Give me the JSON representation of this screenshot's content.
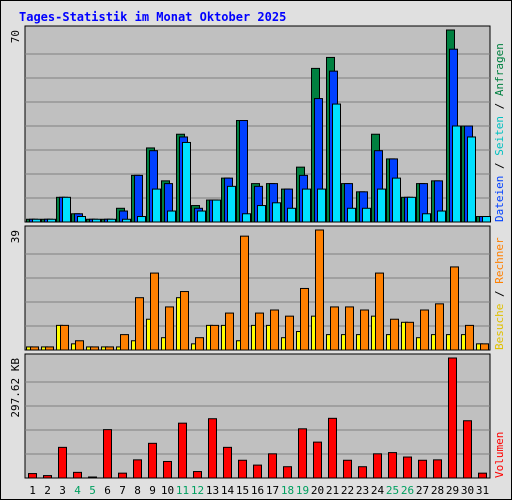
{
  "chart_data": {
    "type": "bar",
    "title": "Tages-Statistik im Monat Oktober 2025",
    "categories": [
      "1",
      "2",
      "3",
      "4",
      "5",
      "6",
      "7",
      "8",
      "9",
      "10",
      "11",
      "12",
      "13",
      "14",
      "15",
      "16",
      "17",
      "18",
      "19",
      "20",
      "21",
      "22",
      "23",
      "24",
      "25",
      "26",
      "27",
      "28",
      "29",
      "30",
      "31"
    ],
    "weekend_days": [
      "4",
      "5",
      "11",
      "12",
      "18",
      "19",
      "25",
      "26"
    ],
    "panels": [
      {
        "ymax_label": "70",
        "ymax": 70,
        "right_labels": [
          "Dateien",
          "/",
          "Seiten",
          "/",
          "Anfragen"
        ],
        "series": [
          {
            "name": "Anfragen",
            "color": "#008040",
            "values": [
              1,
              1,
              9,
              3,
              1,
              1,
              5,
              17,
              27,
              15,
              32,
              6,
              8,
              16,
              37,
              14,
              14,
              12,
              20,
              56,
              60,
              14,
              11,
              32,
              23,
              9,
              14,
              15,
              70,
              35,
              2
            ]
          },
          {
            "name": "Dateien",
            "color": "#0040ff",
            "values": [
              1,
              1,
              9,
              3,
              1,
              1,
              4,
              17,
              26,
              14,
              31,
              5,
              8,
              16,
              37,
              13,
              14,
              12,
              17,
              45,
              55,
              14,
              11,
              26,
              23,
              9,
              14,
              15,
              63,
              35,
              2
            ]
          },
          {
            "name": "Seiten",
            "color": "#00e0ff",
            "values": [
              1,
              1,
              9,
              2,
              1,
              1,
              1,
              2,
              12,
              4,
              29,
              4,
              8,
              13,
              3,
              6,
              7,
              5,
              12,
              12,
              43,
              5,
              5,
              12,
              16,
              9,
              3,
              4,
              35,
              31,
              2
            ]
          }
        ]
      },
      {
        "ymax_label": "39",
        "ymax": 39,
        "right_labels": [
          "Besuche",
          "/",
          "Rechner"
        ],
        "series": [
          {
            "name": "Besuche",
            "color": "#ffff00",
            "values": [
              1,
              1,
              8,
              2,
              1,
              1,
              1,
              3,
              10,
              4,
              17,
              2,
              8,
              8,
              3,
              8,
              8,
              4,
              6,
              11,
              5,
              5,
              5,
              11,
              5,
              9,
              4,
              5,
              5,
              5,
              2
            ]
          },
          {
            "name": "Rechner",
            "color": "#ff8000",
            "values": [
              1,
              1,
              8,
              3,
              1,
              1,
              5,
              17,
              25,
              14,
              19,
              4,
              8,
              12,
              37,
              12,
              13,
              11,
              20,
              39,
              14,
              14,
              13,
              25,
              10,
              9,
              13,
              15,
              27,
              8,
              2
            ]
          }
        ]
      },
      {
        "ymax_label": "297.62 KB",
        "ymax": 297.62,
        "right_labels": [
          "Volumen"
        ],
        "series": [
          {
            "name": "Volumen",
            "color": "#ff0000",
            "values": [
              11,
              6,
              76,
              14,
              2,
              120,
              12,
              45,
              86,
              41,
              136,
              16,
              147,
              76,
              44,
              32,
              60,
              28,
              122,
              89,
              148,
              44,
              28,
              60,
              63,
              52,
              44,
              45,
              297.62,
              142,
              12
            ]
          }
        ]
      }
    ]
  }
}
